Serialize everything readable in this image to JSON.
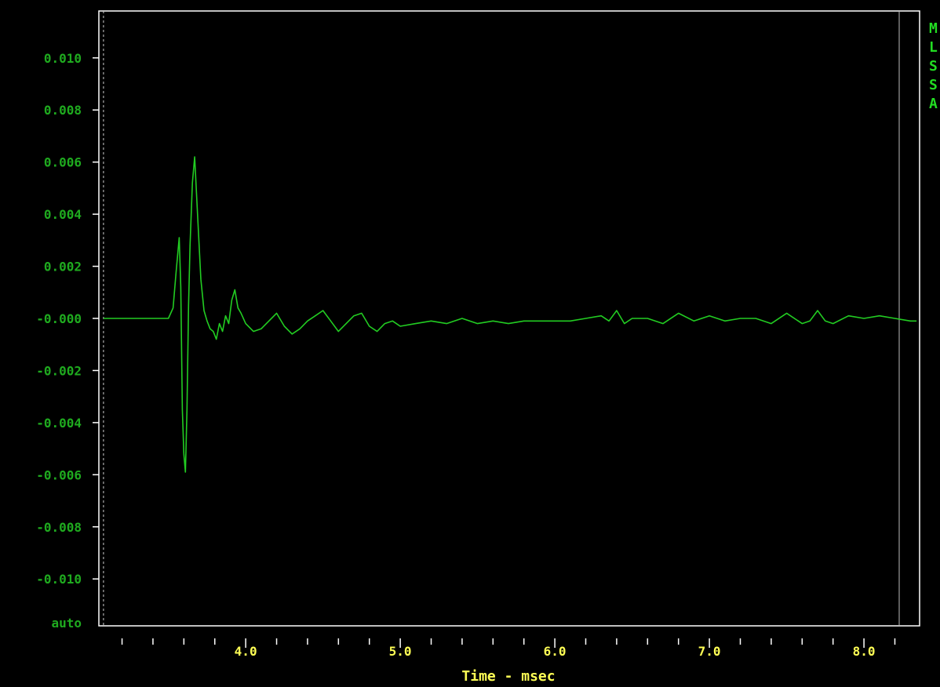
{
  "chart_data": {
    "type": "line",
    "xlabel": "Time - msec",
    "ylabel": "",
    "xlim": [
      3.05,
      8.36
    ],
    "ylim": [
      -0.0118,
      0.0118
    ],
    "x_tick_labels": [
      "4.0",
      "5.0",
      "6.0",
      "7.0",
      "8.0"
    ],
    "x_ticks": [
      4.0,
      5.0,
      6.0,
      7.0,
      8.0
    ],
    "x_minor_step": 0.2,
    "y_ticks": [
      0.01,
      0.008,
      0.006,
      0.004,
      0.002,
      0.0,
      -0.002,
      -0.004,
      -0.006,
      -0.008,
      -0.01
    ],
    "y_tick_labels": [
      "0.010",
      "0.008",
      "0.006",
      "0.004",
      "0.002",
      "-0.000",
      "-0.002",
      "-0.004",
      "-0.006",
      "-0.008",
      "-0.010"
    ],
    "y_scale_mode_label": "auto",
    "cursor_x": 3.08,
    "grid": false,
    "series": [
      {
        "color": "#22cc22",
        "x": [
          3.08,
          3.2,
          3.3,
          3.4,
          3.5,
          3.53,
          3.55,
          3.57,
          3.58,
          3.59,
          3.6,
          3.61,
          3.62,
          3.63,
          3.64,
          3.655,
          3.67,
          3.69,
          3.71,
          3.73,
          3.75,
          3.77,
          3.79,
          3.81,
          3.83,
          3.85,
          3.87,
          3.89,
          3.91,
          3.93,
          3.95,
          3.97,
          4.0,
          4.05,
          4.1,
          4.15,
          4.2,
          4.25,
          4.3,
          4.35,
          4.4,
          4.45,
          4.5,
          4.55,
          4.6,
          4.65,
          4.7,
          4.75,
          4.8,
          4.85,
          4.9,
          4.95,
          5.0,
          5.1,
          5.2,
          5.3,
          5.4,
          5.5,
          5.6,
          5.7,
          5.8,
          5.9,
          6.0,
          6.1,
          6.2,
          6.3,
          6.35,
          6.4,
          6.45,
          6.5,
          6.6,
          6.7,
          6.8,
          6.9,
          7.0,
          7.1,
          7.2,
          7.3,
          7.4,
          7.5,
          7.6,
          7.65,
          7.7,
          7.75,
          7.8,
          7.9,
          8.0,
          8.1,
          8.2,
          8.3,
          8.34
        ],
        "y": [
          0.0,
          0.0,
          0.0,
          0.0,
          0.0,
          0.0004,
          0.0018,
          0.0031,
          0.0012,
          -0.0035,
          -0.0052,
          -0.0059,
          -0.0035,
          0.0005,
          0.0028,
          0.0052,
          0.0062,
          0.0038,
          0.0015,
          0.0003,
          -0.0001,
          -0.0004,
          -0.0005,
          -0.0008,
          -0.0002,
          -0.0005,
          0.0001,
          -0.0002,
          0.0007,
          0.0011,
          0.0004,
          0.0002,
          -0.0002,
          -0.0005,
          -0.0004,
          -0.0001,
          0.0002,
          -0.0003,
          -0.0006,
          -0.0004,
          -0.0001,
          0.0001,
          0.0003,
          -0.0001,
          -0.0005,
          -0.0002,
          0.0001,
          0.0002,
          -0.0003,
          -0.0005,
          -0.0002,
          -0.0001,
          -0.0003,
          -0.0002,
          -0.0001,
          -0.0002,
          0.0,
          -0.0002,
          -0.0001,
          -0.0002,
          -0.0001,
          -0.0001,
          -0.0001,
          -0.0001,
          0.0,
          0.0001,
          -0.0001,
          0.0003,
          -0.0002,
          0.0,
          0.0,
          -0.0002,
          0.0002,
          -0.0001,
          0.0001,
          -0.0001,
          0.0,
          0.0,
          -0.0002,
          0.0002,
          -0.0002,
          -0.0001,
          0.0003,
          -0.0001,
          -0.0002,
          0.0001,
          0.0,
          0.0001,
          0.0,
          -0.0001,
          -0.0001
        ]
      }
    ]
  },
  "side_panel": {
    "letters": [
      "M",
      "L",
      "S",
      "S",
      "A"
    ]
  },
  "colors": {
    "background": "#000000",
    "frame": "#ffffff",
    "trace": "#22cc22",
    "y_labels": "#1faa1f",
    "x_labels": "#ffff55",
    "side_labels": "#22dd22"
  }
}
